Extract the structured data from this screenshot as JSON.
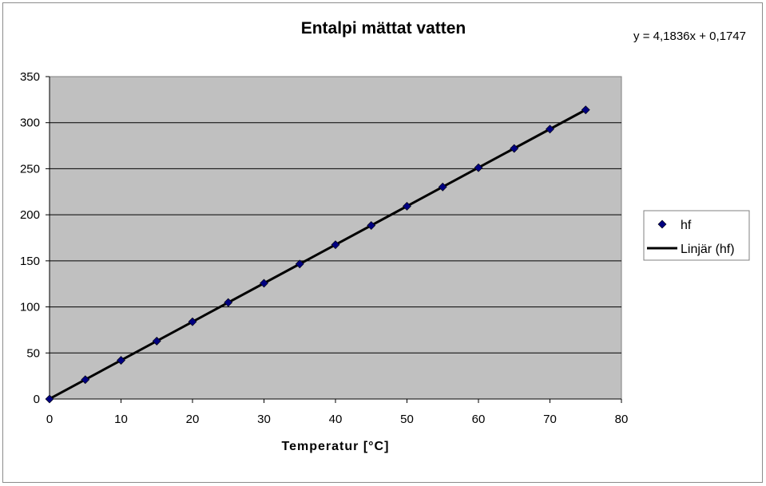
{
  "chart_data": {
    "type": "scatter",
    "title": "Entalpi mättat vatten",
    "xlabel": "Temperatur [°C]",
    "ylabel": "",
    "xlim": [
      0,
      80
    ],
    "ylim": [
      0,
      350
    ],
    "x_ticks": [
      0,
      10,
      20,
      30,
      40,
      50,
      60,
      70,
      80
    ],
    "y_ticks": [
      0,
      50,
      100,
      150,
      200,
      250,
      300,
      350
    ],
    "grid": "horizontal",
    "plot_background": "#c0c0c0",
    "legend_position": "right",
    "trendline_equation": "y = 4,1836x + 0,1747",
    "series": [
      {
        "name": "hf",
        "marker": "diamond",
        "color": "#000080",
        "x": [
          0,
          5,
          10,
          15,
          20,
          25,
          30,
          35,
          40,
          45,
          50,
          55,
          60,
          65,
          70,
          75
        ],
        "y": [
          0.0,
          21.0,
          42.0,
          62.9,
          83.9,
          104.8,
          125.7,
          146.6,
          167.5,
          188.4,
          209.3,
          230.2,
          251.1,
          272.0,
          293.0,
          313.9
        ]
      },
      {
        "name": "Linjär (hf)",
        "type": "line",
        "color": "#000000",
        "slope": 4.1836,
        "intercept": 0.1747,
        "x_range": [
          0,
          75
        ]
      }
    ]
  }
}
